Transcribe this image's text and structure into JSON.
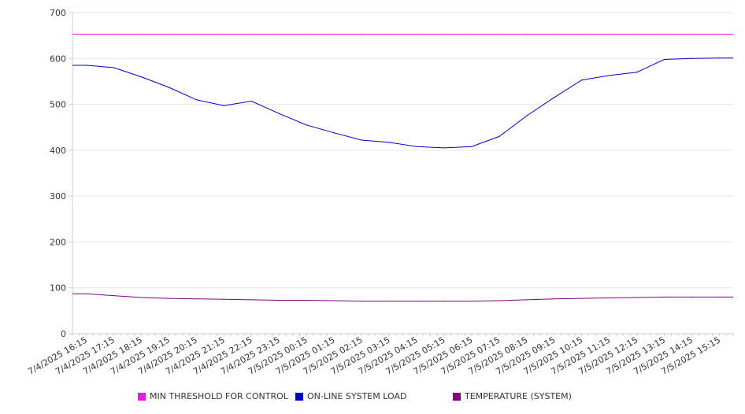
{
  "chart_data": {
    "type": "line",
    "ylim": [
      0,
      700
    ],
    "yticks": [
      0,
      100,
      200,
      300,
      400,
      500,
      600,
      700
    ],
    "grid": true,
    "legend_position": "bottom",
    "x": [
      "7/4/2025 16:15",
      "7/4/2025 17:15",
      "7/4/2025 18:15",
      "7/4/2025 19:15",
      "7/4/2025 20:15",
      "7/4/2025 21:15",
      "7/4/2025 22:15",
      "7/4/2025 23:15",
      "7/5/2025 00:15",
      "7/5/2025 01:15",
      "7/5/2025 02:15",
      "7/5/2025 03:15",
      "7/5/2025 04:15",
      "7/5/2025 05:15",
      "7/5/2025 06:15",
      "7/5/2025 07:15",
      "7/5/2025 08:15",
      "7/5/2025 09:15",
      "7/5/2025 10:15",
      "7/5/2025 11:15",
      "7/5/2025 12:15",
      "7/5/2025 13:15",
      "7/5/2025 14:15",
      "7/5/2025 15:15"
    ],
    "series": [
      {
        "name": "MIN THRESHOLD FOR CONTROL",
        "color": "#e619e6",
        "values": [
          653,
          653,
          653,
          653,
          653,
          653,
          653,
          653,
          653,
          653,
          653,
          653,
          653,
          653,
          653,
          653,
          653,
          653,
          653,
          653,
          653,
          653,
          653,
          653
        ]
      },
      {
        "name": "ON-LINE SYSTEM LOAD",
        "color": "#0000cc",
        "values": [
          585,
          580,
          560,
          537,
          510,
          497,
          507,
          480,
          455,
          438,
          422,
          417,
          408,
          405,
          408,
          430,
          475,
          515,
          553,
          563,
          570,
          598,
          600,
          601
        ]
      },
      {
        "name": "TEMPERATURE (SYSTEM)",
        "color": "#800080",
        "values": [
          87,
          83,
          79,
          77,
          76,
          75,
          74,
          73,
          73,
          72,
          71,
          71,
          71,
          71,
          71,
          72,
          74,
          76,
          77,
          78,
          79,
          80,
          80,
          80
        ]
      }
    ]
  }
}
